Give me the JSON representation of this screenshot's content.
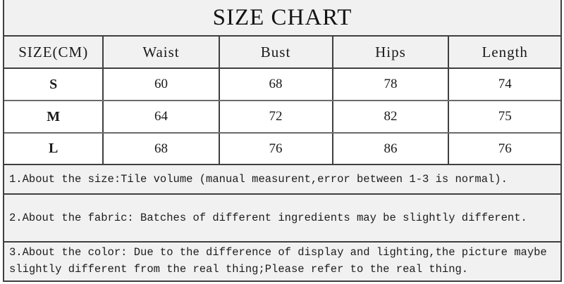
{
  "title": "SIZE CHART",
  "chart_data": {
    "type": "table",
    "title": "SIZE CHART",
    "columns": [
      "SIZE(CM)",
      "Waist",
      "Bust",
      "Hips",
      "Length"
    ],
    "rows": [
      [
        "S",
        60,
        68,
        78,
        74
      ],
      [
        "M",
        64,
        72,
        82,
        75
      ],
      [
        "L",
        68,
        76,
        86,
        76
      ]
    ]
  },
  "notes": [
    {
      "text": "1.About the size:Tile volume (manual measurent,error between 1-3 is normal)."
    },
    {
      "text": "2.About the fabric: Batches of different ingredients may be slightly different."
    },
    {
      "text": "3.About the color: Due to the difference of display and lighting,the picture maybe",
      "text2": "slightly different from the real thing;Please refer to the real thing."
    }
  ],
  "colors": {
    "sheet_background": "#f1f1f1",
    "cell_background": "#ffffff",
    "grid_line": "#3f3f3f",
    "text": "#1a1a1a"
  }
}
